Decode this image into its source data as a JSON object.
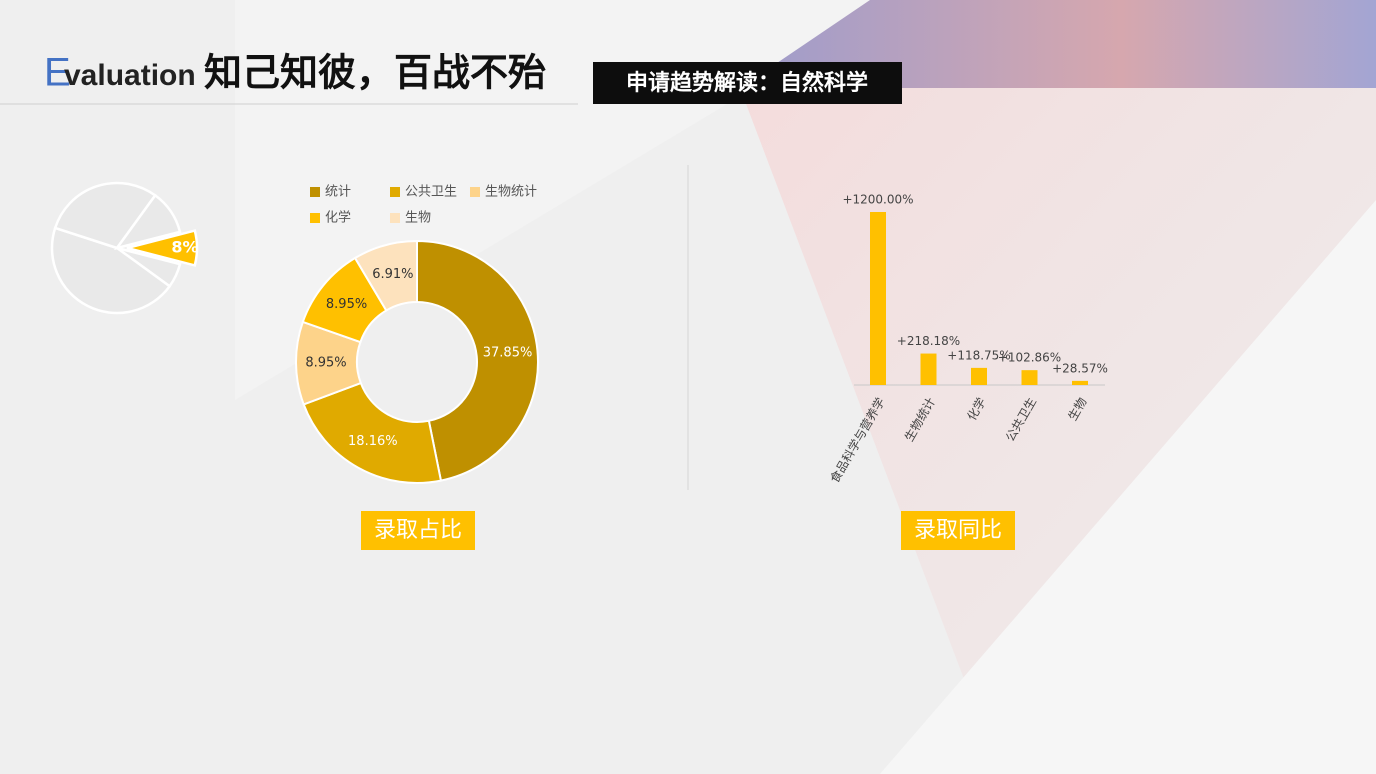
{
  "header": {
    "title_initial": "E",
    "title_rest": "valuation",
    "title_cn": "知己知彼，百战不殆",
    "tag": "申请趋势解读：自然科学"
  },
  "chart_data": [
    {
      "type": "pie",
      "values": [
        8,
        6,
        45,
        30,
        11
      ],
      "value_labels": [
        "8%",
        null,
        null,
        null,
        null
      ],
      "colors": [
        "#ffc000",
        "#e9e9e9",
        "#e9e9e9",
        "#e9e9e9",
        "#e9e9e9"
      ]
    },
    {
      "type": "donut",
      "title": "录取占比",
      "categories": [
        "统计",
        "公共卫生",
        "生物统计",
        "化学",
        "生物"
      ],
      "values": [
        37.85,
        18.16,
        8.95,
        8.95,
        6.91
      ],
      "value_labels": [
        "37.85%",
        "18.16%",
        "8.95%",
        "8.95%",
        "6.91%"
      ],
      "colors": [
        "#bf9000",
        "#e0aa00",
        "#fdd38a",
        "#ffc000",
        "#fde2bd"
      ]
    },
    {
      "type": "bar",
      "title": "录取同比",
      "categories": [
        "食品科学与营养学",
        "生物统计",
        "化学",
        "公共卫生",
        "生物"
      ],
      "values": [
        1200,
        218.18,
        118.75,
        102.86,
        28.57
      ],
      "value_labels": [
        "+1200.00%",
        "+218.18%",
        "+118.75%",
        "+102.86%",
        "+28.57%"
      ],
      "color": "#ffc000",
      "ylim": [
        0,
        1200
      ]
    }
  ]
}
